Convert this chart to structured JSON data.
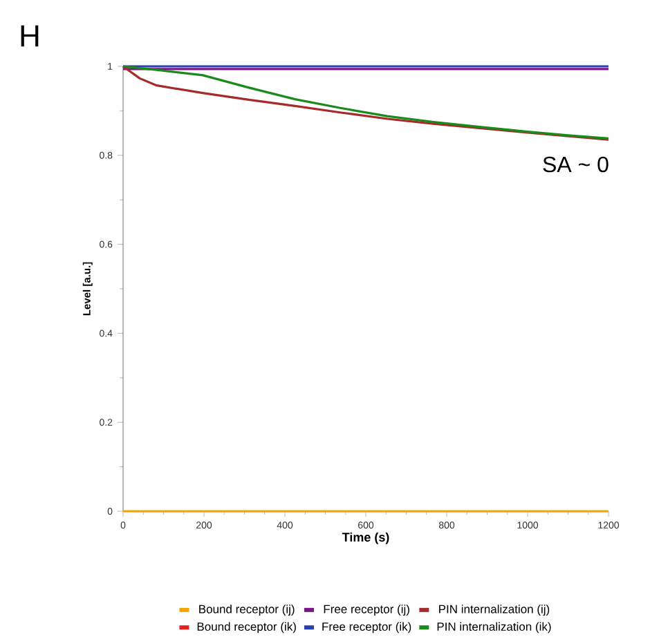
{
  "chart_data": {
    "type": "line",
    "xlabel": "Time (s)",
    "ylabel": "Level [a.u.]",
    "annotations": [
      "H",
      "SA ~ 0"
    ],
    "xlim": [
      0,
      1200
    ],
    "xticks": [
      0,
      200,
      400,
      600,
      800,
      1000,
      1200
    ],
    "ylim": [
      0,
      1
    ],
    "yticks": [
      0,
      0.2,
      0.4,
      0.6,
      0.8,
      1
    ],
    "legend": "bottom",
    "marker": "none",
    "line_style": "solid",
    "x": [
      0,
      41,
      83,
      197,
      311,
      425,
      539,
      653,
      767,
      881,
      1000,
      1100,
      1200
    ],
    "series": [
      {
        "name": "Bound receptor (ij)",
        "color": "#f5a300",
        "values": [
          0,
          0,
          0,
          0,
          0,
          0,
          0,
          0,
          0,
          0,
          0,
          0,
          0
        ]
      },
      {
        "name": "Free receptor (ij)",
        "color": "#7b1585",
        "values": [
          0.994,
          0.994,
          0.994,
          0.994,
          0.994,
          0.994,
          0.994,
          0.994,
          0.994,
          0.994,
          0.994,
          0.994,
          0.994
        ]
      },
      {
        "name": "PIN internalization (ij)",
        "color": "#a52a2a",
        "values": [
          1,
          0.973,
          0.957,
          0.94,
          0.925,
          0.911,
          0.896,
          0.882,
          0.871,
          0.861,
          0.851,
          0.843,
          0.835
        ]
      },
      {
        "name": "Bound receptor (ik)",
        "color": "#e8201c",
        "values": [
          null,
          null,
          null,
          null,
          null,
          null,
          null,
          null,
          null,
          null,
          null,
          null,
          null
        ]
      },
      {
        "name": "Free receptor (ik)",
        "color": "#2a3fb5",
        "values": [
          1,
          1,
          1,
          1,
          1,
          1,
          1,
          1,
          1,
          1,
          1,
          1,
          1
        ]
      },
      {
        "name": "PIN internalization (ik)",
        "color": "#1a8a1a",
        "values": [
          1,
          0.996,
          0.992,
          0.98,
          0.952,
          0.926,
          0.906,
          0.888,
          0.875,
          0.864,
          0.853,
          0.845,
          0.838
        ]
      }
    ]
  }
}
